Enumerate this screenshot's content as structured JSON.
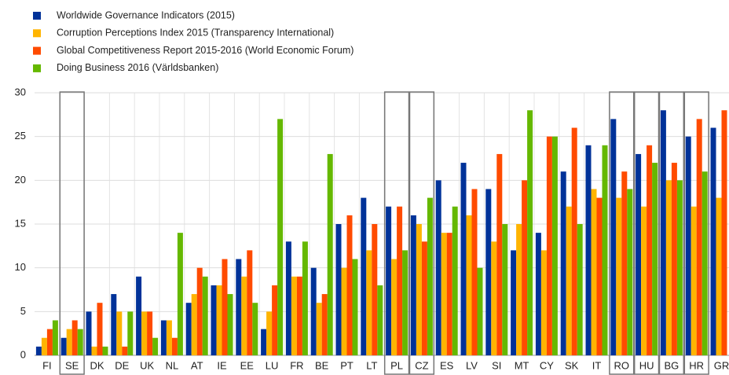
{
  "chart_data": {
    "type": "bar",
    "categories": [
      "FI",
      "SE",
      "DK",
      "DE",
      "UK",
      "NL",
      "AT",
      "IE",
      "EE",
      "LU",
      "FR",
      "BE",
      "PT",
      "LT",
      "PL",
      "CZ",
      "ES",
      "LV",
      "SI",
      "MT",
      "CY",
      "SK",
      "IT",
      "RO",
      "HU",
      "BG",
      "HR",
      "GR"
    ],
    "boxed": [
      false,
      true,
      false,
      false,
      false,
      false,
      false,
      false,
      false,
      false,
      false,
      false,
      false,
      false,
      true,
      true,
      false,
      false,
      false,
      false,
      false,
      false,
      false,
      true,
      true,
      true,
      true,
      false
    ],
    "series": [
      {
        "name": "Worldwide Governance Indicators (2015)",
        "color": "#003299",
        "values": [
          1,
          2,
          5,
          7,
          9,
          4,
          6,
          8,
          11,
          3,
          13,
          10,
          15,
          18,
          17,
          16,
          20,
          22,
          19,
          12,
          14,
          21,
          24,
          27,
          23,
          28,
          25,
          26
        ]
      },
      {
        "name": "Corruption Perceptions Index 2015 (Transparency International)",
        "color": "#ffb400",
        "values": [
          2,
          3,
          1,
          5,
          5,
          4,
          7,
          8,
          9,
          5,
          9,
          6,
          10,
          12,
          11,
          15,
          14,
          16,
          13,
          15,
          12,
          17,
          19,
          18,
          17,
          20,
          17,
          18
        ]
      },
      {
        "name": "Global Competitiveness Report 2015-2016 (World Economic Forum)",
        "color": "#ff4b00",
        "values": [
          3,
          4,
          6,
          1,
          5,
          2,
          10,
          11,
          12,
          8,
          9,
          7,
          16,
          15,
          17,
          13,
          14,
          19,
          23,
          20,
          25,
          26,
          18,
          21,
          24,
          22,
          27,
          28
        ]
      },
      {
        "name": "Doing Business 2016 (Världsbanken)",
        "color": "#65b800",
        "values": [
          4,
          3,
          1,
          5,
          2,
          14,
          9,
          7,
          6,
          27,
          13,
          23,
          11,
          8,
          12,
          18,
          17,
          10,
          15,
          28,
          25,
          15,
          24,
          19,
          22,
          20,
          21,
          null
        ]
      }
    ],
    "ylim": [
      0,
      30
    ],
    "yticks": [
      0,
      5,
      10,
      15,
      20,
      25,
      30
    ],
    "grid": true
  }
}
